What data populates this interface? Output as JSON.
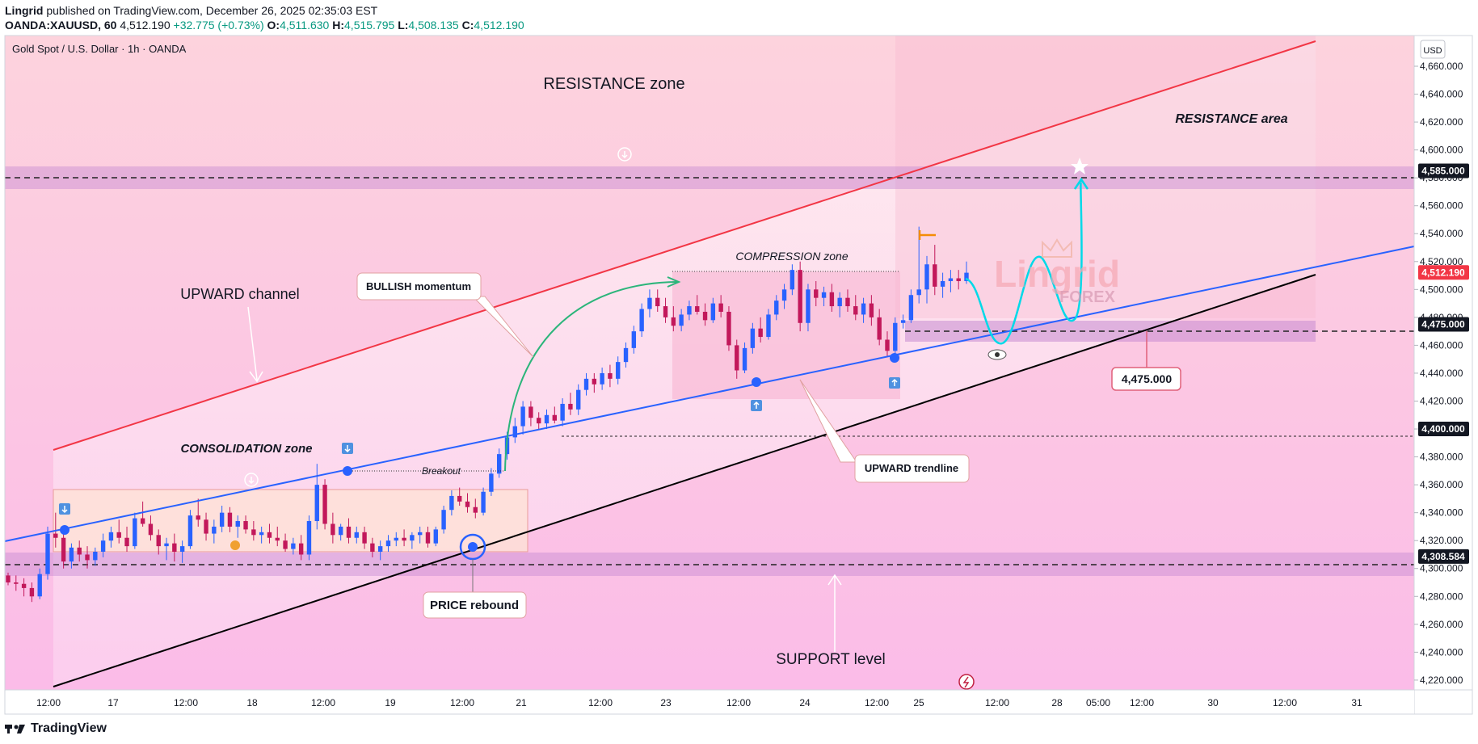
{
  "header": {
    "author": "Lingrid",
    "published": "published on TradingView.com, December 26, 2025 02:35:03 EST",
    "symbol": "OANDA:XAUUSD, 60",
    "price": "4,512.190",
    "change": "+32.775 (+0.73%)",
    "o_label": "O:",
    "o_value": "4,511.630",
    "h_label": "H:",
    "h_value": "4,515.795",
    "l_label": "L:",
    "l_value": "4,508.135",
    "c_label": "C:",
    "c_value": "4,512.190"
  },
  "chart_title": "Gold Spot / U.S. Dollar · 1h · OANDA",
  "currency": "USD",
  "watermark": {
    "line1": "Lingrid",
    "line2": "FOREX"
  },
  "footer": {
    "brand": "TradingView"
  },
  "chart_data": {
    "type": "candlestick",
    "title": "Gold Spot / U.S. Dollar · 1h · OANDA",
    "y_ticks": [
      "4,660.000",
      "4,640.000",
      "4,620.000",
      "4,600.000",
      "4,580.000",
      "4,560.000",
      "4,540.000",
      "4,520.000",
      "4,500.000",
      "4,480.000",
      "4,460.000",
      "4,440.000",
      "4,420.000",
      "4,400.000",
      "4,380.000",
      "4,360.000",
      "4,340.000",
      "4,320.000",
      "4,300.000",
      "4,280.000",
      "4,260.000",
      "4,240.000",
      "4,220.000"
    ],
    "ylim": [
      4213,
      4682
    ],
    "x_ticks": [
      "12:00",
      "17",
      "12:00",
      "18",
      "12:00",
      "19",
      "12:00",
      "21",
      "12:00",
      "23",
      "12:00",
      "24",
      "12:00",
      "25",
      "12:00",
      "28",
      "05:00",
      "12:00",
      "30",
      "12:00",
      "31"
    ],
    "price_labels": [
      {
        "value": 4585,
        "text": "4,585.000",
        "style": "dark"
      },
      {
        "value": 4512.19,
        "text": "4,512.190",
        "style": "red"
      },
      {
        "value": 4475,
        "text": "4,475.000",
        "style": "dark"
      },
      {
        "value": 4400,
        "text": "4,400.000",
        "style": "dark"
      },
      {
        "value": 4308.584,
        "text": "4,308.584",
        "style": "dark"
      }
    ],
    "candles": [
      [
        4295,
        4297,
        4288,
        4290
      ],
      [
        4290,
        4295,
        4284,
        4289
      ],
      [
        4289,
        4293,
        4280,
        4286
      ],
      [
        4286,
        4290,
        4276,
        4280
      ],
      [
        4280,
        4300,
        4278,
        4296
      ],
      [
        4296,
        4330,
        4292,
        4325
      ],
      [
        4325,
        4340,
        4315,
        4322
      ],
      [
        4322,
        4326,
        4300,
        4305
      ],
      [
        4305,
        4318,
        4300,
        4315
      ],
      [
        4315,
        4320,
        4305,
        4310
      ],
      [
        4310,
        4316,
        4300,
        4306
      ],
      [
        4306,
        4315,
        4302,
        4312
      ],
      [
        4312,
        4325,
        4308,
        4320
      ],
      [
        4320,
        4330,
        4315,
        4326
      ],
      [
        4326,
        4335,
        4318,
        4322
      ],
      [
        4322,
        4330,
        4312,
        4316
      ],
      [
        4316,
        4340,
        4314,
        4336
      ],
      [
        4336,
        4348,
        4330,
        4332
      ],
      [
        4332,
        4338,
        4320,
        4324
      ],
      [
        4324,
        4328,
        4310,
        4316
      ],
      [
        4316,
        4322,
        4306,
        4318
      ],
      [
        4318,
        4325,
        4305,
        4312
      ],
      [
        4312,
        4320,
        4304,
        4316
      ],
      [
        4316,
        4342,
        4314,
        4338
      ],
      [
        4338,
        4350,
        4330,
        4335
      ],
      [
        4335,
        4340,
        4320,
        4325
      ],
      [
        4325,
        4335,
        4318,
        4330
      ],
      [
        4330,
        4345,
        4326,
        4340
      ],
      [
        4340,
        4344,
        4326,
        4330
      ],
      [
        4330,
        4338,
        4322,
        4334
      ],
      [
        4334,
        4338,
        4325,
        4328
      ],
      [
        4328,
        4334,
        4320,
        4324
      ],
      [
        4324,
        4330,
        4318,
        4326
      ],
      [
        4326,
        4332,
        4318,
        4322
      ],
      [
        4322,
        4330,
        4316,
        4320
      ],
      [
        4320,
        4325,
        4312,
        4314
      ],
      [
        4314,
        4322,
        4310,
        4318
      ],
      [
        4318,
        4324,
        4306,
        4310
      ],
      [
        4310,
        4338,
        4306,
        4334
      ],
      [
        4334,
        4375,
        4328,
        4360
      ],
      [
        4360,
        4364,
        4328,
        4332
      ],
      [
        4332,
        4340,
        4318,
        4324
      ],
      [
        4324,
        4332,
        4320,
        4330
      ],
      [
        4330,
        4336,
        4318,
        4322
      ],
      [
        4322,
        4330,
        4318,
        4326
      ],
      [
        4326,
        4330,
        4314,
        4318
      ],
      [
        4318,
        4322,
        4308,
        4312
      ],
      [
        4312,
        4320,
        4306,
        4316
      ],
      [
        4316,
        4324,
        4312,
        4320
      ],
      [
        4320,
        4326,
        4316,
        4322
      ],
      [
        4322,
        4328,
        4316,
        4320
      ],
      [
        4320,
        4326,
        4314,
        4324
      ],
      [
        4324,
        4330,
        4318,
        4326
      ],
      [
        4326,
        4330,
        4315,
        4318
      ],
      [
        4318,
        4330,
        4316,
        4328
      ],
      [
        4328,
        4345,
        4325,
        4342
      ],
      [
        4342,
        4356,
        4338,
        4352
      ],
      [
        4352,
        4358,
        4345,
        4348
      ],
      [
        4348,
        4354,
        4340,
        4344
      ],
      [
        4344,
        4350,
        4336,
        4340
      ],
      [
        4340,
        4358,
        4338,
        4355
      ],
      [
        4355,
        4372,
        4352,
        4368
      ],
      [
        4368,
        4386,
        4365,
        4382
      ],
      [
        4382,
        4398,
        4378,
        4394
      ],
      [
        4394,
        4408,
        4390,
        4402
      ],
      [
        4402,
        4420,
        4396,
        4416
      ],
      [
        4416,
        4420,
        4402,
        4408
      ],
      [
        4408,
        4412,
        4400,
        4404
      ],
      [
        4404,
        4414,
        4400,
        4410
      ],
      [
        4410,
        4416,
        4404,
        4406
      ],
      [
        4406,
        4422,
        4402,
        4418
      ],
      [
        4418,
        4426,
        4410,
        4414
      ],
      [
        4414,
        4432,
        4410,
        4428
      ],
      [
        4428,
        4440,
        4424,
        4436
      ],
      [
        4436,
        4440,
        4426,
        4432
      ],
      [
        4432,
        4444,
        4428,
        4440
      ],
      [
        4440,
        4446,
        4430,
        4436
      ],
      [
        4436,
        4452,
        4432,
        4448
      ],
      [
        4448,
        4462,
        4444,
        4458
      ],
      [
        4458,
        4474,
        4454,
        4470
      ],
      [
        4470,
        4490,
        4466,
        4486
      ],
      [
        4486,
        4500,
        4480,
        4494
      ],
      [
        4494,
        4500,
        4484,
        4488
      ],
      [
        4488,
        4494,
        4476,
        4480
      ],
      [
        4480,
        4488,
        4470,
        4474
      ],
      [
        4474,
        4486,
        4470,
        4482
      ],
      [
        4482,
        4492,
        4478,
        4488
      ],
      [
        4488,
        4496,
        4482,
        4484
      ],
      [
        4484,
        4490,
        4474,
        4478
      ],
      [
        4478,
        4494,
        4476,
        4490
      ],
      [
        4490,
        4496,
        4480,
        4484
      ],
      [
        4484,
        4488,
        4456,
        4460
      ],
      [
        4460,
        4464,
        4436,
        4442
      ],
      [
        4442,
        4462,
        4440,
        4458
      ],
      [
        4458,
        4476,
        4454,
        4472
      ],
      [
        4472,
        4480,
        4462,
        4466
      ],
      [
        4466,
        4486,
        4464,
        4482
      ],
      [
        4482,
        4496,
        4478,
        4492
      ],
      [
        4492,
        4504,
        4486,
        4500
      ],
      [
        4500,
        4518,
        4496,
        4514
      ],
      [
        4514,
        4520,
        4470,
        4476
      ],
      [
        4476,
        4504,
        4470,
        4500
      ],
      [
        4500,
        4506,
        4488,
        4494
      ],
      [
        4494,
        4502,
        4488,
        4498
      ],
      [
        4498,
        4504,
        4484,
        4488
      ],
      [
        4488,
        4498,
        4480,
        4494
      ],
      [
        4494,
        4500,
        4484,
        4488
      ],
      [
        4488,
        4496,
        4478,
        4482
      ],
      [
        4482,
        4494,
        4476,
        4490
      ],
      [
        4490,
        4496,
        4474,
        4480
      ],
      [
        4480,
        4486,
        4460,
        4464
      ],
      [
        4464,
        4470,
        4452,
        4456
      ],
      [
        4456,
        4480,
        4454,
        4476
      ],
      [
        4476,
        4482,
        4472,
        4478
      ],
      [
        4478,
        4500,
        4476,
        4496
      ],
      [
        4496,
        4545,
        4490,
        4500
      ],
      [
        4500,
        4524,
        4490,
        4518
      ],
      [
        4518,
        4532,
        4496,
        4502
      ],
      [
        4502,
        4512,
        4494,
        4506
      ],
      [
        4506,
        4514,
        4498,
        4508
      ],
      [
        4508,
        4514,
        4500,
        4506
      ],
      [
        4506,
        4520,
        4504,
        4512
      ]
    ],
    "annotations": [
      "RESISTANCE zone",
      "RESISTANCE area",
      "UPWARD channel",
      "BULLISH momentum",
      "COMPRESSION zone",
      "CONSOLIDATION zone",
      "Breakout",
      "UPWARD trendline",
      "PRICE rebound",
      "SUPPORT level",
      "4,475.000"
    ]
  }
}
